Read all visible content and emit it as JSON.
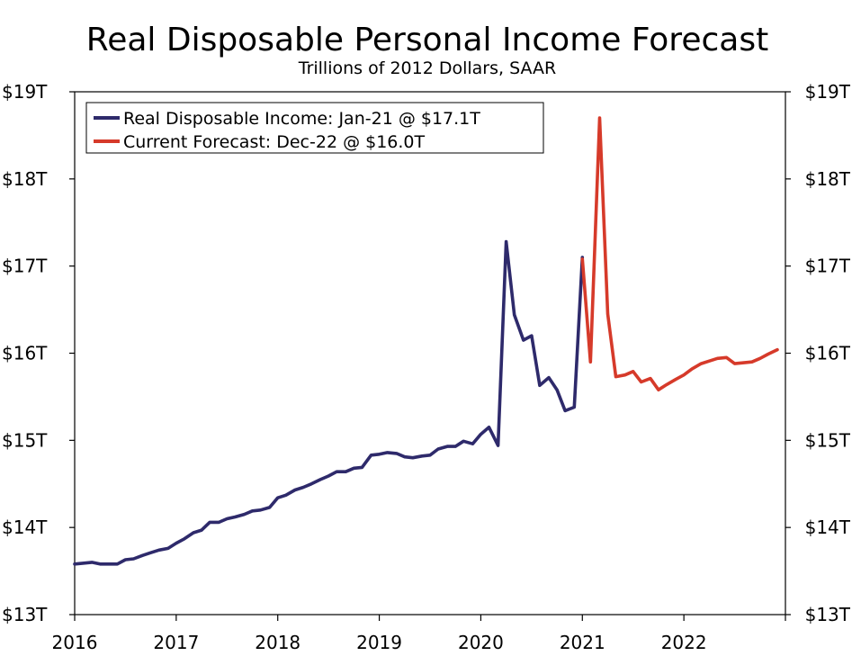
{
  "chart_data": {
    "type": "line",
    "title": "Real Disposable Personal Income Forecast",
    "subtitle": "Trillions of 2012 Dollars, SAAR",
    "xlabel": "",
    "ylabel": "",
    "x_ticks": [
      "2016",
      "2017",
      "2018",
      "2019",
      "2020",
      "2021",
      "2022"
    ],
    "y_ticks": [
      "$13T",
      "$14T",
      "$15T",
      "$16T",
      "$17T",
      "$18T",
      "$19T"
    ],
    "ylim": [
      13,
      19
    ],
    "xlim": [
      2016.0,
      2023.0
    ],
    "grid": false,
    "legend_position": "top-left",
    "series": [
      {
        "name": "Real Disposable Income: Jan-21 @ $17.1T",
        "color": "#2e2a6b",
        "x": [
          2016.0,
          2016.08,
          2016.17,
          2016.25,
          2016.33,
          2016.42,
          2016.5,
          2016.58,
          2016.67,
          2016.75,
          2016.83,
          2016.92,
          2017.0,
          2017.08,
          2017.17,
          2017.25,
          2017.33,
          2017.42,
          2017.5,
          2017.58,
          2017.67,
          2017.75,
          2017.83,
          2017.92,
          2018.0,
          2018.08,
          2018.17,
          2018.25,
          2018.33,
          2018.42,
          2018.5,
          2018.58,
          2018.67,
          2018.75,
          2018.83,
          2018.92,
          2019.0,
          2019.08,
          2019.17,
          2019.25,
          2019.33,
          2019.42,
          2019.5,
          2019.58,
          2019.67,
          2019.75,
          2019.83,
          2019.92,
          2020.0,
          2020.08,
          2020.17,
          2020.25,
          2020.33,
          2020.42,
          2020.5,
          2020.58,
          2020.67,
          2020.75,
          2020.83,
          2020.92,
          2021.0
        ],
        "values": [
          13.58,
          13.59,
          13.6,
          13.58,
          13.58,
          13.58,
          13.63,
          13.64,
          13.68,
          13.71,
          13.74,
          13.76,
          13.82,
          13.87,
          13.94,
          13.97,
          14.06,
          14.06,
          14.1,
          14.12,
          14.15,
          14.19,
          14.2,
          14.23,
          14.34,
          14.37,
          14.43,
          14.46,
          14.5,
          14.55,
          14.59,
          14.64,
          14.64,
          14.68,
          14.69,
          14.83,
          14.84,
          14.86,
          14.85,
          14.81,
          14.8,
          14.82,
          14.83,
          14.9,
          14.93,
          14.93,
          14.99,
          14.96,
          15.07,
          15.15,
          14.94,
          17.28,
          16.44,
          16.15,
          16.2,
          15.63,
          15.72,
          15.58,
          15.34,
          15.38,
          17.1
        ]
      },
      {
        "name": "Current Forecast: Dec-22 @ $16.0T",
        "color": "#d63a2a",
        "x": [
          2021.0,
          2021.08,
          2021.17,
          2021.25,
          2021.33,
          2021.42,
          2021.5,
          2021.58,
          2021.67,
          2021.75,
          2021.83,
          2021.92,
          2022.0,
          2022.08,
          2022.17,
          2022.25,
          2022.33,
          2022.42,
          2022.5,
          2022.58,
          2022.67,
          2022.75,
          2022.83,
          2022.92
        ],
        "values": [
          17.08,
          15.9,
          18.7,
          16.45,
          15.73,
          15.75,
          15.79,
          15.67,
          15.71,
          15.58,
          15.64,
          15.7,
          15.75,
          15.82,
          15.88,
          15.91,
          15.94,
          15.95,
          15.88,
          15.89,
          15.9,
          15.94,
          15.99,
          16.04
        ]
      }
    ]
  }
}
